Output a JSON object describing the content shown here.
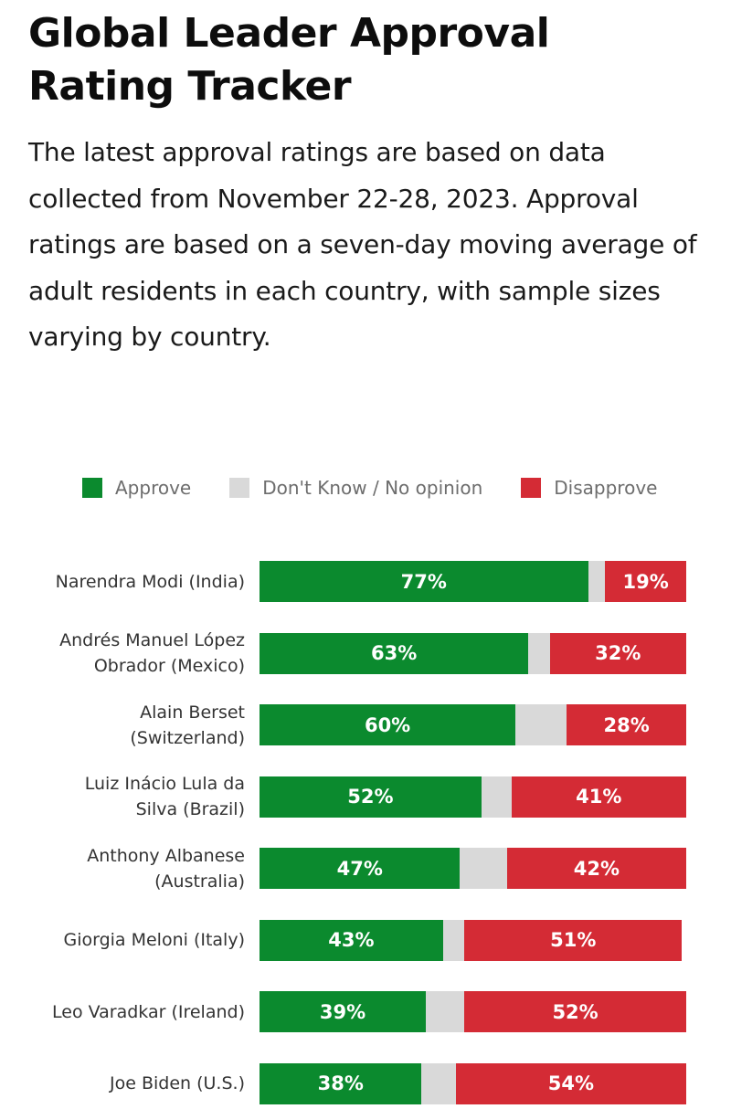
{
  "title": "Global Leader Approval Rating Tracker",
  "subtitle": "The latest approval ratings are based on data collected from November 22-28, 2023. Approval ratings are based on a seven-day moving average of adult residents in each country, with sample sizes varying by country.",
  "colors": {
    "approve": "#0b8a2e",
    "dont_know": "#d9d9d9",
    "disapprove": "#d42b35"
  },
  "legend": [
    {
      "label": "Approve",
      "key": "approve"
    },
    {
      "label": "Don't Know / No opinion",
      "key": "dont_know"
    },
    {
      "label": "Disapprove",
      "key": "disapprove"
    }
  ],
  "chart_data": {
    "type": "bar",
    "orientation": "horizontal",
    "stacked": true,
    "legend_position": "top",
    "xlim": [
      0,
      100
    ],
    "categories": [
      [
        "Narendra Modi (India)"
      ],
      [
        "Andrés Manuel López",
        "Obrador (Mexico)"
      ],
      [
        "Alain Berset",
        "(Switzerland)"
      ],
      [
        "Luiz Inácio Lula da",
        "Silva (Brazil)"
      ],
      [
        "Anthony Albanese",
        "(Australia)"
      ],
      [
        "Giorgia Meloni (Italy)"
      ],
      [
        "Leo Varadkar (Ireland)"
      ],
      [
        "Joe Biden (U.S.)"
      ]
    ],
    "series": [
      {
        "name": "Approve",
        "key": "approve",
        "values": [
          77,
          63,
          60,
          52,
          47,
          43,
          39,
          38
        ],
        "labels": [
          "77%",
          "63%",
          "60%",
          "52%",
          "47%",
          "43%",
          "39%",
          "38%"
        ]
      },
      {
        "name": "Don't Know / No opinion",
        "key": "dont_know",
        "values": [
          4,
          5,
          12,
          7,
          11,
          5,
          9,
          8
        ],
        "labels": [
          "",
          "",
          "",
          "",
          "",
          "",
          "",
          ""
        ]
      },
      {
        "name": "Disapprove",
        "key": "disapprove",
        "values": [
          19,
          32,
          28,
          41,
          42,
          51,
          52,
          54
        ],
        "labels": [
          "19%",
          "32%",
          "28%",
          "41%",
          "42%",
          "51%",
          "52%",
          "54%"
        ]
      }
    ]
  }
}
